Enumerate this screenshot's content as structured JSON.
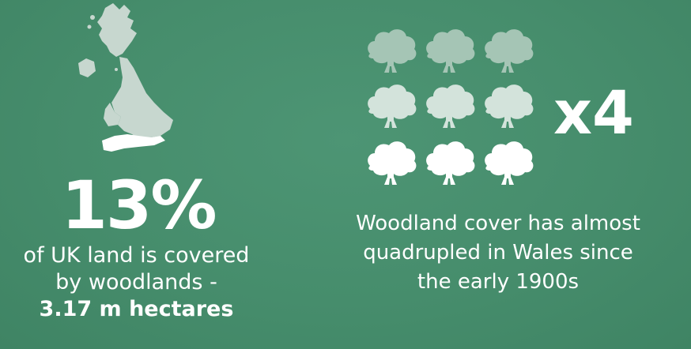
{
  "left": {
    "map_icon": "uk-map-icon",
    "highlight_color": "#ffffff",
    "map_color": "#c7d7cf",
    "percent": "13%",
    "caption_line1": "of UK land is covered",
    "caption_line2": "by woodlands -",
    "caption_bold": "3.17 m hectares"
  },
  "right": {
    "tree_icon": "tree-icon",
    "tree_colors": [
      "#a5c5b5",
      "#d3e3db",
      "#ffffff"
    ],
    "multiplier": "x4",
    "caption_line1": "Woodland cover has almost",
    "caption_line2": "quadrupled in Wales since",
    "caption_line3": "the early 1900s"
  }
}
